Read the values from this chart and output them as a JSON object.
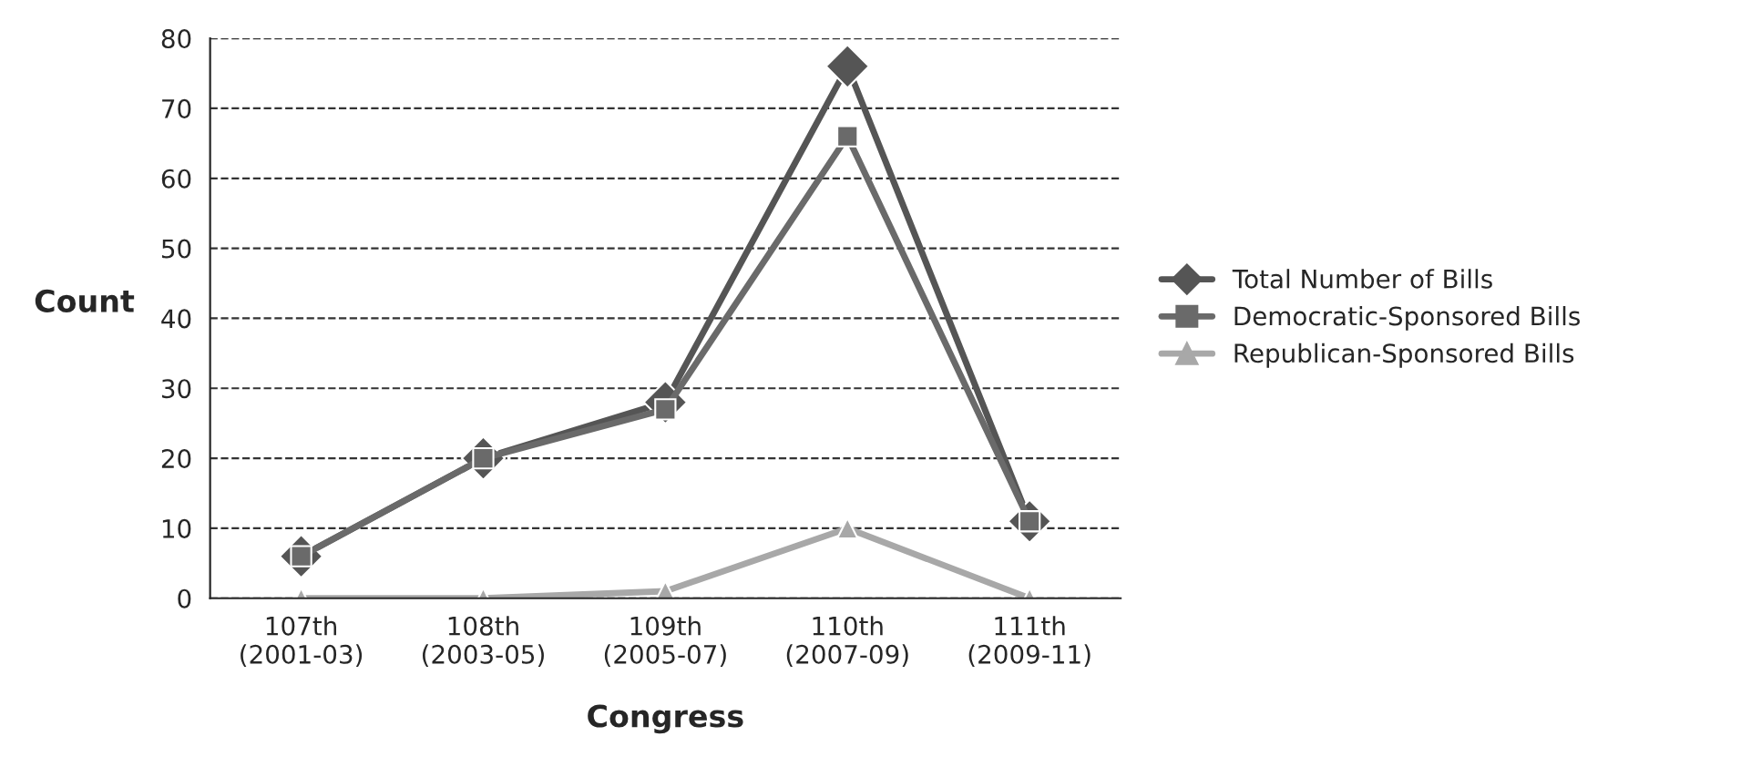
{
  "chart_data": {
    "type": "line",
    "xlabel": "Congress",
    "ylabel": "Count",
    "categories": [
      "107th\n(2001-03)",
      "108th\n(2003-05)",
      "109th\n(2005-07)",
      "110th\n(2007-09)",
      "111th\n(2009-11)"
    ],
    "series": [
      {
        "name": "Total Number of Bills",
        "color": "#555555",
        "marker": "diamond",
        "values": [
          6,
          20,
          28,
          76,
          11
        ]
      },
      {
        "name": "Democratic-Sponsored Bills",
        "color": "#6a6a6a",
        "marker": "square",
        "values": [
          6,
          20,
          27,
          66,
          11
        ]
      },
      {
        "name": "Republican-Sponsored Bills",
        "color": "#a8a8a8",
        "marker": "triangle",
        "values": [
          0,
          0,
          1,
          10,
          0
        ]
      }
    ],
    "ylim": [
      0,
      80
    ],
    "yticks": [
      0,
      10,
      20,
      30,
      40,
      50,
      60,
      70,
      80
    ],
    "grid": "y",
    "legend": "right",
    "line_style": "solid"
  }
}
